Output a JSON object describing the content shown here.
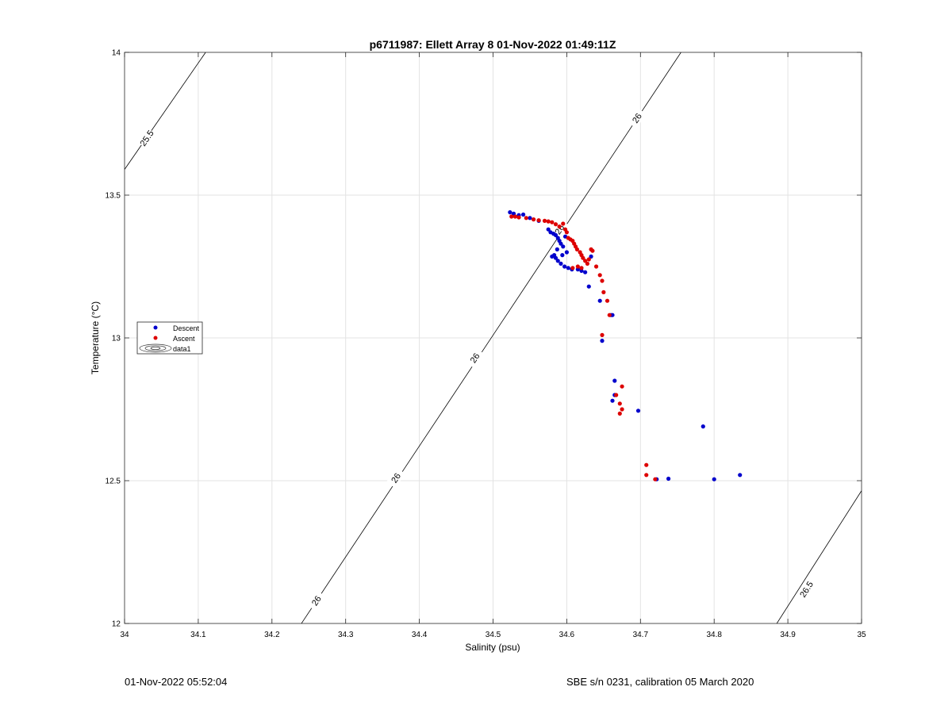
{
  "chart_data": {
    "type": "scatter",
    "title": "p6711987: Ellett Array 8 01-Nov-2022 01:49:11Z",
    "xlabel": "Salinity (psu)",
    "ylabel": "Temperature (°C)",
    "xlim": [
      34,
      35
    ],
    "ylim": [
      12,
      14
    ],
    "xticks": [
      34,
      34.1,
      34.2,
      34.3,
      34.4,
      34.5,
      34.6,
      34.7,
      34.8,
      34.9,
      35
    ],
    "xtick_labels": [
      "34",
      "34.1",
      "34.2",
      "34.3",
      "34.4",
      "34.5",
      "34.6",
      "34.7",
      "34.8",
      "34.9",
      "35"
    ],
    "yticks": [
      12,
      12.5,
      13,
      13.5,
      14
    ],
    "ytick_labels": [
      "12",
      "12.5",
      "13",
      "13.5",
      "14"
    ],
    "grid": true,
    "legend": {
      "placement": "left",
      "entries": [
        {
          "label": "Descent",
          "color": "#0000cc",
          "marker": "dot"
        },
        {
          "label": "Ascent",
          "color": "#dd0000",
          "marker": "dot"
        },
        {
          "label": "data1",
          "marker": "contour"
        }
      ]
    },
    "contours": [
      {
        "level": "25.5",
        "points": [
          [
            34.0,
            13.59
          ],
          [
            34.11,
            14.0
          ]
        ],
        "labels": [
          {
            "text": "25.5",
            "x": 34.03,
            "y": 13.7
          }
        ]
      },
      {
        "level": "26",
        "points": [
          [
            34.24,
            12.0
          ],
          [
            34.755,
            14.0
          ]
        ],
        "labels": [
          {
            "text": "26",
            "x": 34.26,
            "y": 12.08
          },
          {
            "text": "26",
            "x": 34.368,
            "y": 12.51
          },
          {
            "text": "26",
            "x": 34.475,
            "y": 12.93
          },
          {
            "text": "26",
            "x": 34.59,
            "y": 13.38
          },
          {
            "text": "26",
            "x": 34.695,
            "y": 13.77
          }
        ]
      },
      {
        "level": "26.5",
        "points": [
          [
            34.885,
            12.0
          ],
          [
            35.0,
            12.465
          ]
        ],
        "labels": [
          {
            "text": "26.5",
            "x": 34.925,
            "y": 12.12
          }
        ]
      }
    ],
    "series": [
      {
        "name": "Descent",
        "color": "#0000cc",
        "points": [
          [
            34.523,
            13.44
          ],
          [
            34.528,
            13.435
          ],
          [
            34.535,
            13.43
          ],
          [
            34.541,
            13.432
          ],
          [
            34.55,
            13.42
          ],
          [
            34.562,
            13.41
          ],
          [
            34.575,
            13.38
          ],
          [
            34.578,
            13.37
          ],
          [
            34.582,
            13.365
          ],
          [
            34.585,
            13.36
          ],
          [
            34.588,
            13.35
          ],
          [
            34.59,
            13.34
          ],
          [
            34.592,
            13.33
          ],
          [
            34.587,
            13.31
          ],
          [
            34.583,
            13.29
          ],
          [
            34.58,
            13.285
          ],
          [
            34.585,
            13.28
          ],
          [
            34.588,
            13.27
          ],
          [
            34.592,
            13.26
          ],
          [
            34.597,
            13.25
          ],
          [
            34.602,
            13.245
          ],
          [
            34.607,
            13.24
          ],
          [
            34.615,
            13.24
          ],
          [
            34.62,
            13.235
          ],
          [
            34.625,
            13.23
          ],
          [
            34.633,
            13.285
          ],
          [
            34.6,
            13.3
          ],
          [
            34.594,
            13.29
          ],
          [
            34.595,
            13.32
          ],
          [
            34.598,
            13.355
          ],
          [
            34.63,
            13.18
          ],
          [
            34.645,
            13.13
          ],
          [
            34.66,
            13.08
          ],
          [
            34.662,
            13.08
          ],
          [
            34.648,
            12.99
          ],
          [
            34.665,
            12.85
          ],
          [
            34.665,
            12.8
          ],
          [
            34.662,
            12.78
          ],
          [
            34.697,
            12.745
          ],
          [
            34.785,
            12.69
          ],
          [
            34.835,
            12.52
          ],
          [
            34.8,
            12.505
          ],
          [
            34.738,
            12.507
          ],
          [
            34.722,
            12.505
          ]
        ]
      },
      {
        "name": "Ascent",
        "color": "#dd0000",
        "points": [
          [
            34.525,
            13.425
          ],
          [
            34.53,
            13.425
          ],
          [
            34.535,
            13.422
          ],
          [
            34.545,
            13.42
          ],
          [
            34.555,
            13.415
          ],
          [
            34.562,
            13.412
          ],
          [
            34.57,
            13.41
          ],
          [
            34.575,
            13.408
          ],
          [
            34.58,
            13.405
          ],
          [
            34.585,
            13.398
          ],
          [
            34.59,
            13.39
          ],
          [
            34.595,
            13.4
          ],
          [
            34.598,
            13.38
          ],
          [
            34.6,
            13.37
          ],
          [
            34.602,
            13.35
          ],
          [
            34.605,
            13.345
          ],
          [
            34.608,
            13.34
          ],
          [
            34.61,
            13.33
          ],
          [
            34.612,
            13.32
          ],
          [
            34.614,
            13.31
          ],
          [
            34.618,
            13.3
          ],
          [
            34.62,
            13.29
          ],
          [
            34.622,
            13.28
          ],
          [
            34.625,
            13.27
          ],
          [
            34.628,
            13.26
          ],
          [
            34.63,
            13.275
          ],
          [
            34.633,
            13.31
          ],
          [
            34.635,
            13.305
          ],
          [
            34.64,
            13.25
          ],
          [
            34.615,
            13.25
          ],
          [
            34.608,
            13.245
          ],
          [
            34.62,
            13.245
          ],
          [
            34.645,
            13.22
          ],
          [
            34.648,
            13.2
          ],
          [
            34.65,
            13.16
          ],
          [
            34.655,
            13.13
          ],
          [
            34.658,
            13.08
          ],
          [
            34.648,
            13.01
          ],
          [
            34.667,
            12.8
          ],
          [
            34.675,
            12.83
          ],
          [
            34.675,
            12.75
          ],
          [
            34.672,
            12.77
          ],
          [
            34.672,
            12.735
          ],
          [
            34.708,
            12.555
          ],
          [
            34.708,
            12.52
          ],
          [
            34.72,
            12.505
          ]
        ]
      }
    ]
  },
  "footer": {
    "left": "01-Nov-2022 05:52:04",
    "right": "SBE s/n 0231, calibration 05 March 2020"
  }
}
